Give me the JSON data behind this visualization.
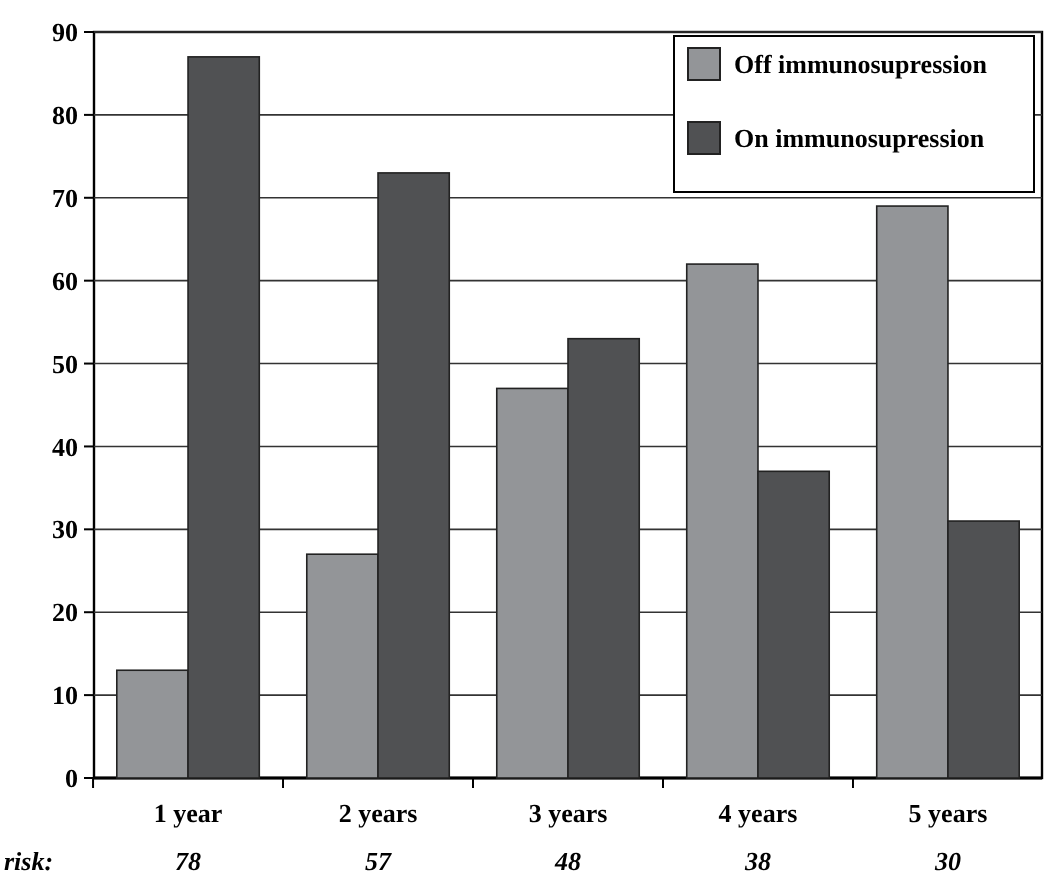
{
  "chart_data": {
    "type": "bar",
    "categories": [
      "1 year",
      "2 years",
      "3 years",
      "4 years",
      "5 years"
    ],
    "series": [
      {
        "name": "Off immunosupression",
        "color": "#939598",
        "values": [
          13,
          27,
          47,
          62,
          69
        ]
      },
      {
        "name": "On immunosupression",
        "color": "#505153",
        "values": [
          87,
          73,
          53,
          37,
          31
        ]
      }
    ],
    "ylim": [
      0,
      90
    ],
    "yticks": [
      0,
      10,
      20,
      30,
      40,
      50,
      60,
      70,
      80,
      90
    ],
    "grid": "y",
    "legend": "top right",
    "annotations": [
      "risk:",
      "78",
      "57",
      "48",
      "38",
      "30"
    ]
  }
}
